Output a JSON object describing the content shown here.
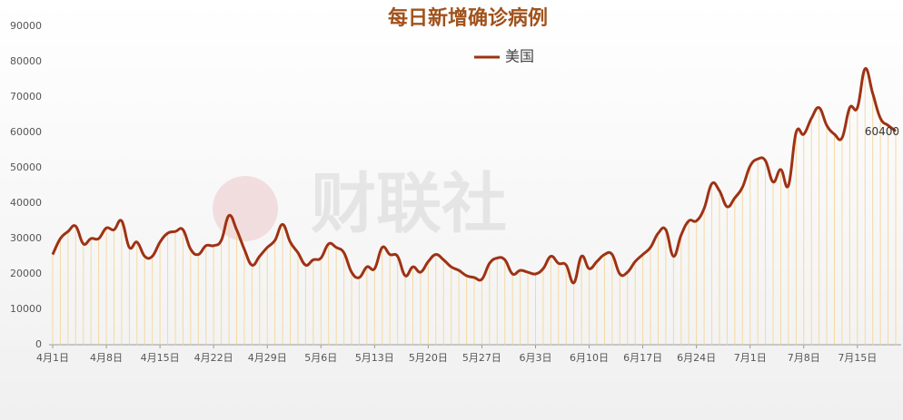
{
  "chart_data": {
    "type": "line",
    "title": "每日新增确诊病例",
    "watermark": "财联社",
    "categories": [
      "4月1日",
      null,
      null,
      null,
      null,
      null,
      null,
      "4月8日",
      null,
      null,
      null,
      null,
      null,
      null,
      "4月15日",
      null,
      null,
      null,
      null,
      null,
      null,
      "4月22日",
      null,
      null,
      null,
      null,
      null,
      null,
      "4月29日",
      null,
      null,
      null,
      null,
      null,
      null,
      "5月6日",
      null,
      null,
      null,
      null,
      null,
      null,
      "5月13日",
      null,
      null,
      null,
      null,
      null,
      null,
      "5月20日",
      null,
      null,
      null,
      null,
      null,
      null,
      "5月27日",
      null,
      null,
      null,
      null,
      null,
      null,
      "6月3日",
      null,
      null,
      null,
      null,
      null,
      null,
      "6月10日",
      null,
      null,
      null,
      null,
      null,
      null,
      "6月17日",
      null,
      null,
      null,
      null,
      null,
      null,
      "6月24日",
      null,
      null,
      null,
      null,
      null,
      null,
      "7月1日",
      null,
      null,
      null,
      null,
      null,
      null,
      "7月8日",
      null,
      null,
      null,
      null,
      null,
      null,
      "7月15日",
      null,
      null,
      null,
      null,
      null
    ],
    "series": [
      {
        "name": "美国",
        "color": "#9e3214",
        "values": [
          25500,
          30000,
          32000,
          33500,
          28500,
          30000,
          30000,
          33000,
          32500,
          35000,
          27500,
          29000,
          25000,
          25000,
          29000,
          31500,
          32000,
          32500,
          27000,
          25500,
          28000,
          28000,
          29500,
          36500,
          32500,
          27000,
          22500,
          25000,
          27500,
          29500,
          34000,
          29000,
          26000,
          22500,
          24000,
          24500,
          28500,
          27500,
          26000,
          20500,
          19000,
          22000,
          21500,
          27500,
          25500,
          25000,
          19500,
          22000,
          20500,
          23500,
          25500,
          24000,
          22000,
          21000,
          19500,
          19000,
          18500,
          23000,
          24500,
          24000,
          20000,
          21000,
          20500,
          20000,
          21500,
          25000,
          23000,
          22500,
          17500,
          25000,
          21500,
          23500,
          25500,
          25500,
          20000,
          20500,
          23500,
          25500,
          27500,
          31500,
          32500,
          25000,
          31000,
          35000,
          35000,
          38500,
          45500,
          43500,
          39000,
          41500,
          44500,
          50500,
          52500,
          52000,
          46000,
          49500,
          45000,
          60000,
          59500,
          64000,
          67000,
          62000,
          59500,
          58500,
          67000,
          67000,
          78000,
          71000,
          64000,
          62000,
          60400
        ]
      }
    ],
    "ylim": [
      0,
      90000
    ],
    "yticks": [
      0,
      10000,
      20000,
      30000,
      40000,
      50000,
      60000,
      70000,
      80000,
      90000
    ],
    "drop_lines": true,
    "end_label": true
  }
}
